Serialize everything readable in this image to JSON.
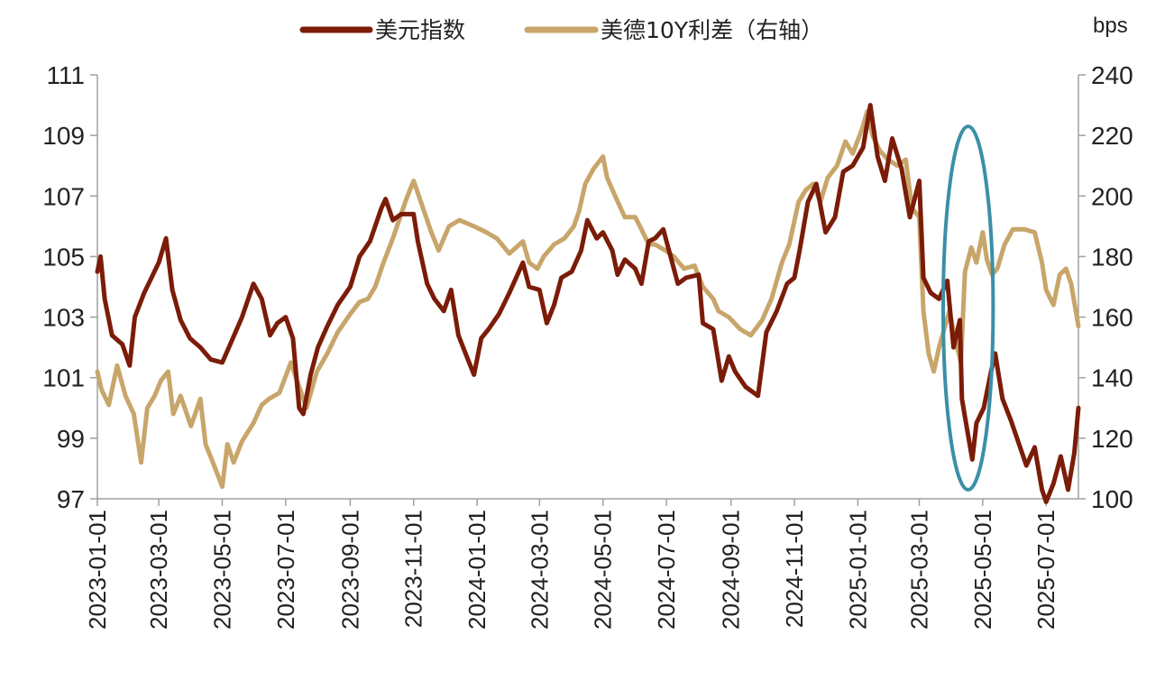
{
  "chart_data": {
    "type": "line",
    "legend": {
      "placement": "top-center",
      "entries": [
        "美元指数",
        "美德10Y利差（右轴）"
      ]
    },
    "unit_right": "bps",
    "y_left": {
      "min": 97,
      "max": 111,
      "ticks": [
        97,
        99,
        101,
        103,
        105,
        107,
        109,
        111
      ]
    },
    "y_right": {
      "min": 100,
      "max": 240,
      "ticks": [
        100,
        120,
        140,
        160,
        180,
        200,
        220,
        240
      ]
    },
    "x_range": [
      "2023-01-01",
      "2025-08-01"
    ],
    "x_ticks": [
      "2023-01-01",
      "2023-03-01",
      "2023-05-01",
      "2023-07-01",
      "2023-09-01",
      "2023-11-01",
      "2024-01-01",
      "2024-03-01",
      "2024-05-01",
      "2024-07-01",
      "2024-09-01",
      "2024-11-01",
      "2025-01-01",
      "2025-03-01",
      "2025-05-01",
      "2025-07-01"
    ],
    "grid": false,
    "annotation": {
      "type": "ellipse",
      "color": "#3b8fa6",
      "from": "2025-03-24",
      "to": "2025-05-11",
      "y_low": 97.3,
      "y_high": 109.3
    },
    "series": [
      {
        "name": "美元指数",
        "axis": "left",
        "color": "#7b1c08",
        "points": [
          [
            "2023-01-01",
            104.5
          ],
          [
            "2023-01-04",
            105.0
          ],
          [
            "2023-01-08",
            103.6
          ],
          [
            "2023-01-15",
            102.4
          ],
          [
            "2023-01-25",
            102.1
          ],
          [
            "2023-02-01",
            101.4
          ],
          [
            "2023-02-06",
            103.0
          ],
          [
            "2023-02-15",
            103.8
          ],
          [
            "2023-02-22",
            104.3
          ],
          [
            "2023-03-01",
            104.8
          ],
          [
            "2023-03-08",
            105.6
          ],
          [
            "2023-03-14",
            103.9
          ],
          [
            "2023-03-22",
            102.9
          ],
          [
            "2023-03-31",
            102.3
          ],
          [
            "2023-04-10",
            102.0
          ],
          [
            "2023-04-20",
            101.6
          ],
          [
            "2023-05-01",
            101.5
          ],
          [
            "2023-05-10",
            102.2
          ],
          [
            "2023-05-20",
            103.0
          ],
          [
            "2023-05-31",
            104.1
          ],
          [
            "2023-06-08",
            103.6
          ],
          [
            "2023-06-16",
            102.4
          ],
          [
            "2023-06-23",
            102.8
          ],
          [
            "2023-07-01",
            103.0
          ],
          [
            "2023-07-08",
            102.3
          ],
          [
            "2023-07-14",
            100.0
          ],
          [
            "2023-07-18",
            99.8
          ],
          [
            "2023-07-25",
            101.1
          ],
          [
            "2023-08-01",
            102.0
          ],
          [
            "2023-08-10",
            102.7
          ],
          [
            "2023-08-20",
            103.4
          ],
          [
            "2023-09-01",
            104.0
          ],
          [
            "2023-09-10",
            105.0
          ],
          [
            "2023-09-20",
            105.5
          ],
          [
            "2023-10-01",
            106.6
          ],
          [
            "2023-10-05",
            106.9
          ],
          [
            "2023-10-12",
            106.2
          ],
          [
            "2023-10-20",
            106.4
          ],
          [
            "2023-11-01",
            106.4
          ],
          [
            "2023-11-05",
            105.5
          ],
          [
            "2023-11-14",
            104.1
          ],
          [
            "2023-11-21",
            103.6
          ],
          [
            "2023-11-30",
            103.2
          ],
          [
            "2023-12-07",
            103.9
          ],
          [
            "2023-12-14",
            102.4
          ],
          [
            "2023-12-22",
            101.7
          ],
          [
            "2023-12-29",
            101.1
          ],
          [
            "2024-01-05",
            102.3
          ],
          [
            "2024-01-12",
            102.6
          ],
          [
            "2024-01-22",
            103.1
          ],
          [
            "2024-02-01",
            103.8
          ],
          [
            "2024-02-14",
            104.8
          ],
          [
            "2024-02-20",
            104.0
          ],
          [
            "2024-03-01",
            103.9
          ],
          [
            "2024-03-08",
            102.8
          ],
          [
            "2024-03-15",
            103.4
          ],
          [
            "2024-03-22",
            104.3
          ],
          [
            "2024-04-01",
            104.5
          ],
          [
            "2024-04-10",
            105.2
          ],
          [
            "2024-04-16",
            106.2
          ],
          [
            "2024-04-25",
            105.6
          ],
          [
            "2024-05-01",
            105.8
          ],
          [
            "2024-05-10",
            105.2
          ],
          [
            "2024-05-15",
            104.4
          ],
          [
            "2024-05-22",
            104.9
          ],
          [
            "2024-06-01",
            104.6
          ],
          [
            "2024-06-07",
            104.1
          ],
          [
            "2024-06-14",
            105.5
          ],
          [
            "2024-06-20",
            105.6
          ],
          [
            "2024-06-28",
            105.9
          ],
          [
            "2024-07-05",
            105.0
          ],
          [
            "2024-07-12",
            104.1
          ],
          [
            "2024-07-20",
            104.3
          ],
          [
            "2024-08-01",
            104.4
          ],
          [
            "2024-08-05",
            102.8
          ],
          [
            "2024-08-15",
            102.6
          ],
          [
            "2024-08-23",
            100.9
          ],
          [
            "2024-08-30",
            101.7
          ],
          [
            "2024-09-05",
            101.2
          ],
          [
            "2024-09-15",
            100.7
          ],
          [
            "2024-09-27",
            100.4
          ],
          [
            "2024-10-05",
            102.5
          ],
          [
            "2024-10-15",
            103.2
          ],
          [
            "2024-10-25",
            104.1
          ],
          [
            "2024-11-01",
            104.3
          ],
          [
            "2024-11-06",
            105.2
          ],
          [
            "2024-11-14",
            106.8
          ],
          [
            "2024-11-22",
            107.4
          ],
          [
            "2024-12-01",
            105.8
          ],
          [
            "2024-12-10",
            106.3
          ],
          [
            "2024-12-18",
            107.8
          ],
          [
            "2024-12-27",
            108.0
          ],
          [
            "2025-01-06",
            108.6
          ],
          [
            "2025-01-13",
            110.0
          ],
          [
            "2025-01-20",
            108.3
          ],
          [
            "2025-01-27",
            107.5
          ],
          [
            "2025-02-03",
            108.9
          ],
          [
            "2025-02-12",
            107.9
          ],
          [
            "2025-02-20",
            106.3
          ],
          [
            "2025-03-01",
            107.5
          ],
          [
            "2025-03-05",
            104.3
          ],
          [
            "2025-03-12",
            103.8
          ],
          [
            "2025-03-20",
            103.6
          ],
          [
            "2025-03-28",
            104.2
          ],
          [
            "2025-04-03",
            102.0
          ],
          [
            "2025-04-09",
            102.9
          ],
          [
            "2025-04-11",
            100.3
          ],
          [
            "2025-04-16",
            99.3
          ],
          [
            "2025-04-21",
            98.3
          ],
          [
            "2025-04-25",
            99.5
          ],
          [
            "2025-05-02",
            100.0
          ],
          [
            "2025-05-09",
            101.2
          ],
          [
            "2025-05-13",
            101.8
          ],
          [
            "2025-05-20",
            100.3
          ],
          [
            "2025-05-28",
            99.6
          ],
          [
            "2025-06-05",
            98.8
          ],
          [
            "2025-06-12",
            98.1
          ],
          [
            "2025-06-20",
            98.7
          ],
          [
            "2025-06-27",
            97.3
          ],
          [
            "2025-07-01",
            96.9
          ],
          [
            "2025-07-08",
            97.5
          ],
          [
            "2025-07-15",
            98.4
          ],
          [
            "2025-07-22",
            97.3
          ],
          [
            "2025-07-28",
            98.5
          ],
          [
            "2025-08-01",
            100.0
          ]
        ]
      },
      {
        "name": "美德10Y利差（右轴）",
        "axis": "right",
        "color": "#c8a56a",
        "points": [
          [
            "2023-01-01",
            142
          ],
          [
            "2023-01-05",
            136
          ],
          [
            "2023-01-12",
            131
          ],
          [
            "2023-01-20",
            144
          ],
          [
            "2023-01-28",
            134
          ],
          [
            "2023-02-05",
            128
          ],
          [
            "2023-02-12",
            112
          ],
          [
            "2023-02-18",
            130
          ],
          [
            "2023-02-25",
            134
          ],
          [
            "2023-03-03",
            139
          ],
          [
            "2023-03-10",
            142
          ],
          [
            "2023-03-15",
            128
          ],
          [
            "2023-03-22",
            134
          ],
          [
            "2023-04-01",
            124
          ],
          [
            "2023-04-10",
            133
          ],
          [
            "2023-04-15",
            118
          ],
          [
            "2023-04-22",
            112
          ],
          [
            "2023-05-01",
            104
          ],
          [
            "2023-05-06",
            118
          ],
          [
            "2023-05-12",
            112
          ],
          [
            "2023-05-20",
            119
          ],
          [
            "2023-05-31",
            125
          ],
          [
            "2023-06-08",
            131
          ],
          [
            "2023-06-15",
            133
          ],
          [
            "2023-06-25",
            135
          ],
          [
            "2023-07-06",
            145
          ],
          [
            "2023-07-14",
            137
          ],
          [
            "2023-07-21",
            130
          ],
          [
            "2023-07-31",
            142
          ],
          [
            "2023-08-10",
            148
          ],
          [
            "2023-08-20",
            155
          ],
          [
            "2023-09-01",
            161
          ],
          [
            "2023-09-10",
            165
          ],
          [
            "2023-09-18",
            166
          ],
          [
            "2023-09-25",
            170
          ],
          [
            "2023-10-03",
            178
          ],
          [
            "2023-10-12",
            186
          ],
          [
            "2023-10-19",
            193
          ],
          [
            "2023-10-25",
            199
          ],
          [
            "2023-11-01",
            205
          ],
          [
            "2023-11-05",
            201
          ],
          [
            "2023-11-12",
            194
          ],
          [
            "2023-11-18",
            188
          ],
          [
            "2023-11-25",
            182
          ],
          [
            "2023-12-05",
            190
          ],
          [
            "2023-12-15",
            192
          ],
          [
            "2023-12-29",
            190
          ],
          [
            "2024-01-10",
            188
          ],
          [
            "2024-01-20",
            186
          ],
          [
            "2024-02-01",
            181
          ],
          [
            "2024-02-14",
            185
          ],
          [
            "2024-02-20",
            178
          ],
          [
            "2024-02-28",
            176
          ],
          [
            "2024-03-05",
            180
          ],
          [
            "2024-03-15",
            184
          ],
          [
            "2024-03-25",
            186
          ],
          [
            "2024-04-03",
            190
          ],
          [
            "2024-04-08",
            195
          ],
          [
            "2024-04-14",
            204
          ],
          [
            "2024-04-22",
            209
          ],
          [
            "2024-05-01",
            213
          ],
          [
            "2024-05-05",
            206
          ],
          [
            "2024-05-14",
            199
          ],
          [
            "2024-05-22",
            193
          ],
          [
            "2024-06-01",
            193
          ],
          [
            "2024-06-07",
            189
          ],
          [
            "2024-06-14",
            184
          ],
          [
            "2024-06-20",
            184
          ],
          [
            "2024-06-30",
            182
          ],
          [
            "2024-07-08",
            180
          ],
          [
            "2024-07-18",
            176
          ],
          [
            "2024-07-28",
            177
          ],
          [
            "2024-08-05",
            170
          ],
          [
            "2024-08-15",
            166
          ],
          [
            "2024-08-20",
            162
          ],
          [
            "2024-08-30",
            160
          ],
          [
            "2024-09-10",
            156
          ],
          [
            "2024-09-20",
            154
          ],
          [
            "2024-10-01",
            159
          ],
          [
            "2024-10-10",
            166
          ],
          [
            "2024-10-20",
            178
          ],
          [
            "2024-10-27",
            184
          ],
          [
            "2024-11-05",
            198
          ],
          [
            "2024-11-12",
            202
          ],
          [
            "2024-11-19",
            204
          ],
          [
            "2024-11-26",
            198
          ],
          [
            "2024-12-03",
            206
          ],
          [
            "2024-12-12",
            210
          ],
          [
            "2024-12-20",
            218
          ],
          [
            "2024-12-27",
            214
          ],
          [
            "2025-01-05",
            222
          ],
          [
            "2025-01-10",
            228
          ],
          [
            "2025-01-15",
            220
          ],
          [
            "2025-01-22",
            215
          ],
          [
            "2025-01-30",
            212
          ],
          [
            "2025-02-08",
            210
          ],
          [
            "2025-02-16",
            212
          ],
          [
            "2025-02-22",
            196
          ],
          [
            "2025-03-01",
            193
          ],
          [
            "2025-03-05",
            162
          ],
          [
            "2025-03-10",
            148
          ],
          [
            "2025-03-15",
            142
          ],
          [
            "2025-03-20",
            150
          ],
          [
            "2025-03-30",
            162
          ],
          [
            "2025-04-05",
            152
          ],
          [
            "2025-04-10",
            145
          ],
          [
            "2025-04-14",
            175
          ],
          [
            "2025-04-20",
            183
          ],
          [
            "2025-04-25",
            178
          ],
          [
            "2025-05-01",
            188
          ],
          [
            "2025-05-05",
            179
          ],
          [
            "2025-05-10",
            174
          ],
          [
            "2025-05-15",
            176
          ],
          [
            "2025-05-22",
            184
          ],
          [
            "2025-05-30",
            189
          ],
          [
            "2025-06-10",
            189
          ],
          [
            "2025-06-20",
            188
          ],
          [
            "2025-06-27",
            178
          ],
          [
            "2025-07-01",
            169
          ],
          [
            "2025-07-08",
            164
          ],
          [
            "2025-07-14",
            174
          ],
          [
            "2025-07-20",
            176
          ],
          [
            "2025-07-25",
            171
          ],
          [
            "2025-08-01",
            157
          ]
        ]
      }
    ]
  }
}
